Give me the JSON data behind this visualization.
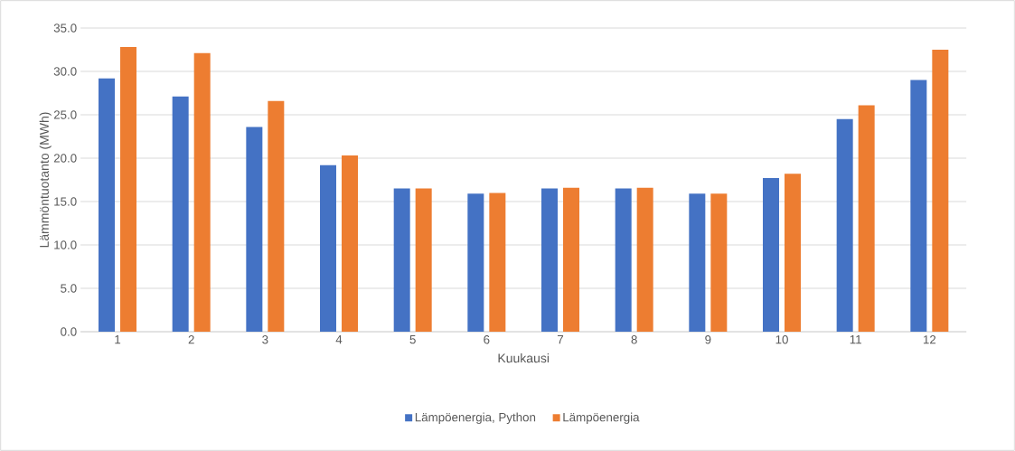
{
  "chart_data": {
    "type": "bar",
    "xlabel": "Kuukausi",
    "ylabel": "Lämmöntuotanto (MWh)",
    "categories": [
      "1",
      "2",
      "3",
      "4",
      "5",
      "6",
      "7",
      "8",
      "9",
      "10",
      "11",
      "12"
    ],
    "series": [
      {
        "name": "Lämpöenergia, Python",
        "color": "#4472c4",
        "values": [
          29.2,
          27.1,
          23.6,
          19.2,
          16.5,
          15.9,
          16.5,
          16.5,
          15.9,
          17.7,
          24.5,
          29.0
        ]
      },
      {
        "name": "Lämpöenergia",
        "color": "#ed7d31",
        "values": [
          32.8,
          32.1,
          26.6,
          20.3,
          16.5,
          16.0,
          16.6,
          16.6,
          15.9,
          18.2,
          26.1,
          32.5
        ]
      }
    ],
    "ylim": [
      0,
      35
    ],
    "yticks": [
      {
        "value": 0,
        "label": "0.0"
      },
      {
        "value": 5,
        "label": "5.0"
      },
      {
        "value": 10,
        "label": "10.0"
      },
      {
        "value": 15,
        "label": "15.0"
      },
      {
        "value": 20,
        "label": "20.0"
      },
      {
        "value": 25,
        "label": "25.0"
      },
      {
        "value": 30,
        "label": "30.0"
      },
      {
        "value": 35,
        "label": "35.0"
      }
    ],
    "grid": "y",
    "legend": "bottom"
  }
}
